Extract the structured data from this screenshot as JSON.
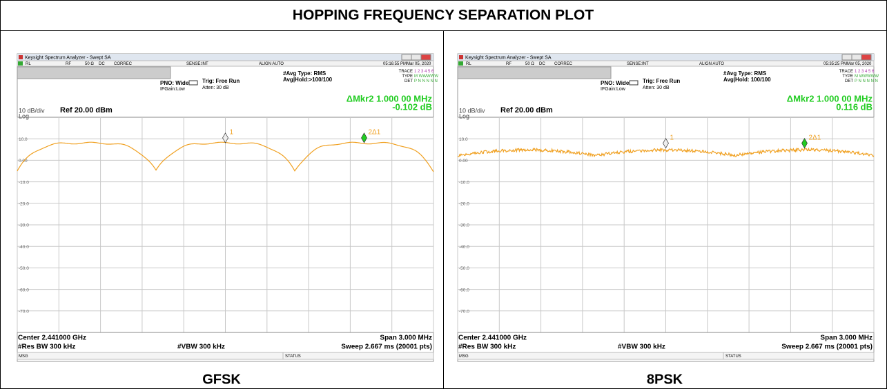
{
  "title": "HOPPING FREQUENCY SEPARATION PLOT",
  "panels": [
    {
      "window_title": "Keysight Spectrum Analyzer - Swept SA",
      "status": [
        "RL",
        "RF",
        "50 Ω",
        "DC",
        "CORREC",
        "SENSE:INT",
        "ALIGN AUTO",
        "05:16:55 PMMar 05, 2020"
      ],
      "pno": "PNO: Wide",
      "ifgain": "IFGain:Low",
      "trig": "Trig: Free Run",
      "atten": "Atten: 30 dB",
      "avg_type": "#Avg Type: RMS",
      "avg_hold": "Avg|Hold:>100/100",
      "trace_label": "TRACE",
      "trace_nums": "1 2 3 4 5 6",
      "type_label": "TYPE",
      "type_vals": "M WWWWW",
      "det_label": "DET",
      "det_vals": "P N N N N N",
      "marker": "ΔMkr2 1.000 00 MHz",
      "marker_value": "-0.102 dB",
      "scale": "10 dB/div",
      "ref": "Ref 20.00 dBm",
      "log": "Log",
      "y_labels": [
        "10.0",
        "0.00",
        "-10.0",
        "-20.0",
        "-30.0",
        "-40.0",
        "-50.0",
        "-60.0",
        "-70.0"
      ],
      "marker1": "1",
      "marker2": "2Δ1",
      "center": "Center 2.441000 GHz",
      "res_bw": "#Res BW 300 kHz",
      "vbw": "#VBW 300 kHz",
      "span": "Span 3.000 MHz",
      "sweep": "Sweep 2.667 ms (20001 pts)",
      "msg": "MSG",
      "status_label": "STATUS",
      "caption": "GFSK"
    },
    {
      "window_title": "Keysight Spectrum Analyzer - Swept SA",
      "status": [
        "RL",
        "RF",
        "50 Ω",
        "DC",
        "CORREC",
        "SENSE:INT",
        "ALIGN AUTO",
        "05:35:25 PMMar 05, 2020"
      ],
      "pno": "PNO: Wide",
      "ifgain": "IFGain:Low",
      "trig": "Trig: Free Run",
      "atten": "Atten: 30 dB",
      "avg_type": "#Avg Type: RMS",
      "avg_hold": "Avg|Hold: 100/100",
      "trace_label": "TRACE",
      "trace_nums": "1 2 3 4 5 6",
      "type_label": "TYPE",
      "type_vals": "M WWWWW",
      "det_label": "DET",
      "det_vals": "P N N N N N",
      "marker": "ΔMkr2 1.000 00 MHz",
      "marker_value": "0.116 dB",
      "scale": "10 dB/div",
      "ref": "Ref 20.00 dBm",
      "log": "Log",
      "y_labels": [
        "10.0",
        "0.00",
        "-10.0",
        "-20.0",
        "-30.0",
        "-40.0",
        "-50.0",
        "-60.0",
        "-70.0"
      ],
      "marker1": "1",
      "marker2": "2Δ1",
      "center": "Center 2.441000 GHz",
      "res_bw": "#Res BW 300 kHz",
      "vbw": "#VBW 300 kHz",
      "span": "Span 3.000 MHz",
      "sweep": "Sweep 2.667 ms (20001 pts)",
      "msg": "MSG",
      "status_label": "STATUS",
      "caption": "8PSK"
    }
  ]
}
